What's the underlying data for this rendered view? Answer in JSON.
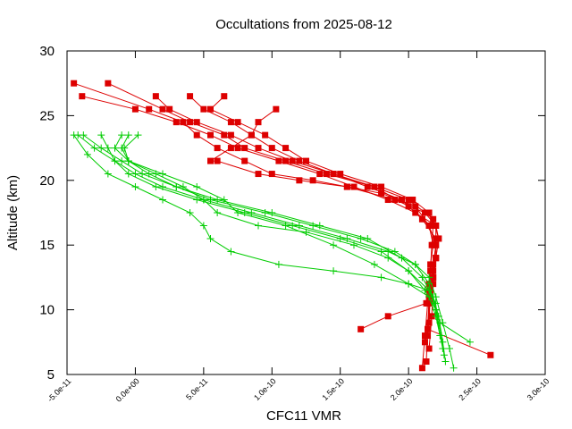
{
  "chart_data": {
    "type": "line",
    "title": "Occultations from 2025-08-12",
    "xlabel": "CFC11 VMR",
    "ylabel": "Altitude (km)",
    "xlim": [
      -5e-11,
      3e-10
    ],
    "ylim": [
      5,
      30
    ],
    "xticks": [
      -5e-11,
      0,
      5e-11,
      1e-10,
      1.5e-10,
      2e-10,
      2.5e-10,
      3e-10
    ],
    "xtick_labels": [
      "-5.0e-11",
      "0.0e+00",
      "5.0e-11",
      "1.0e-10",
      "1.5e-10",
      "2.0e-10",
      "2.5e-10",
      "3.0e-10"
    ],
    "yticks": [
      5,
      10,
      15,
      20,
      25,
      30
    ],
    "ytick_labels": [
      "5",
      "10",
      "15",
      "20",
      "25",
      "30"
    ],
    "grid": false,
    "legend": "none",
    "colors": {
      "red": "#dd0000",
      "green": "#00cc00",
      "axis": "#000000"
    },
    "series": [
      {
        "name": "r1",
        "color": "red",
        "marker": "square",
        "x": [
          -4.5e-11,
          1e-11,
          3.5e-11,
          4.5e-11,
          6e-11,
          8e-11,
          1e-10,
          1.3e-10,
          1.55e-10,
          1.8e-10,
          2.05e-10,
          2.15e-10,
          2.18e-10,
          2.16e-10,
          2.15e-10,
          2.14e-10,
          2.12e-10,
          2.1e-10
        ],
        "y": [
          27.5,
          25.5,
          24.5,
          23.5,
          22.5,
          21.5,
          20.5,
          20,
          19.5,
          19,
          18,
          16.5,
          15,
          13.5,
          12,
          10.5,
          8,
          5.5
        ]
      },
      {
        "name": "r2",
        "color": "red",
        "marker": "square",
        "x": [
          -3.9e-11,
          0.0,
          3e-11,
          5.5e-11,
          7.5e-11,
          1.05e-10,
          1.35e-10,
          1.6e-10,
          1.85e-10,
          2.05e-10,
          2.2e-10,
          2.22e-10,
          2.2e-10,
          2.18e-10,
          2.16e-10,
          2.14e-10,
          2.13e-10
        ],
        "y": [
          26.5,
          25.5,
          24.5,
          23.5,
          22.5,
          21.5,
          20.5,
          19.5,
          18.5,
          17.5,
          16.5,
          15.5,
          14,
          12.5,
          11,
          8.5,
          6
        ]
      },
      {
        "name": "r3",
        "color": "red",
        "marker": "square",
        "x": [
          -2e-11,
          2e-11,
          4e-11,
          6.5e-11,
          8e-11,
          1.1e-10,
          1.4e-10,
          1.75e-10,
          2e-10,
          2.15e-10,
          2.2e-10,
          2.18e-10,
          2.15e-10,
          2.13e-10,
          1.85e-10,
          1.65e-10
        ],
        "y": [
          27.5,
          25.5,
          24.5,
          23.5,
          22.5,
          21.5,
          20.5,
          19.5,
          18,
          16.5,
          15,
          13,
          11.5,
          10.5,
          9.5,
          8.5
        ]
      },
      {
        "name": "r4",
        "color": "red",
        "marker": "square",
        "x": [
          1.5e-11,
          2.5e-11,
          4.5e-11,
          7e-11,
          9e-11,
          1.15e-10,
          1.45e-10,
          1.7e-10,
          1.95e-10,
          2.1e-10,
          2.2e-10,
          2.2e-10,
          2.18e-10,
          2.15e-10,
          2.14e-10
        ],
        "y": [
          26.5,
          25.5,
          24.5,
          23.5,
          22.5,
          21.5,
          20.5,
          19.5,
          18.5,
          17,
          15.5,
          14,
          12.5,
          10.5,
          8
        ]
      },
      {
        "name": "r5",
        "color": "red",
        "marker": "square",
        "x": [
          4e-11,
          5e-11,
          7e-11,
          8.5e-11,
          1e-10,
          1.2e-10,
          1.45e-10,
          1.75e-10,
          2e-10,
          2.18e-10,
          2.22e-10,
          2.2e-10,
          2.18e-10,
          2.17e-10,
          2.15e-10
        ],
        "y": [
          26.5,
          25.5,
          24.5,
          23.5,
          22.5,
          21.5,
          20.5,
          19.5,
          18.5,
          17,
          15.5,
          14,
          12,
          9.5,
          7
        ]
      },
      {
        "name": "r6",
        "color": "red",
        "marker": "square",
        "x": [
          6.5e-11,
          5.5e-11,
          7.5e-11,
          9.5e-11,
          1.1e-10,
          1.25e-10,
          1.5e-10,
          1.8e-10,
          2.03e-10,
          2.15e-10,
          2.18e-10,
          2.17e-10,
          2.16e-10,
          2.15e-10,
          2.14e-10,
          2.6e-10
        ],
        "y": [
          26.5,
          25.5,
          24.5,
          23.5,
          22.5,
          21.5,
          20.5,
          19.5,
          18.5,
          17.5,
          16.5,
          15,
          13,
          11,
          8.5,
          6.5
        ]
      },
      {
        "name": "r7",
        "color": "red",
        "marker": "square",
        "x": [
          1.03e-10,
          9e-11,
          8.5e-11,
          7e-11,
          5.5e-11,
          6e-11,
          9e-11,
          1.2e-10,
          1.55e-10,
          1.9e-10,
          2.12e-10,
          2.2e-10,
          2.2e-10,
          2.18e-10,
          2.16e-10,
          2.15e-10,
          2.12e-10
        ],
        "y": [
          25.5,
          24.5,
          23.5,
          22.5,
          21.5,
          21.5,
          20.5,
          20,
          19.5,
          18.5,
          17.5,
          16.5,
          15,
          13.5,
          11.5,
          9,
          7.5
        ]
      },
      {
        "name": "g1",
        "color": "green",
        "marker": "plus",
        "x": [
          -4.2e-11,
          -3e-11,
          -1.5e-11,
          0.0,
          2e-11,
          5e-11,
          8.5e-11,
          1.2e-10,
          1.55e-10,
          1.85e-10,
          2.05e-10,
          2.15e-10,
          2.2e-10,
          2.25e-10,
          2.3e-10,
          2.33e-10
        ],
        "y": [
          23.5,
          22.5,
          21.5,
          20.5,
          19.5,
          18.5,
          17.5,
          16.5,
          15.5,
          14.5,
          13.5,
          12.5,
          11,
          9,
          7,
          5.5
        ]
      },
      {
        "name": "g2",
        "color": "green",
        "marker": "plus",
        "x": [
          -3.8e-11,
          -2.5e-11,
          -1e-11,
          5e-12,
          3e-11,
          6e-11,
          1e-10,
          1.35e-10,
          1.7e-10,
          1.95e-10,
          2.1e-10,
          2.18e-10,
          2.22e-10,
          2.25e-10,
          2.27e-10
        ],
        "y": [
          23.5,
          22.5,
          21.5,
          20.5,
          19.5,
          18.5,
          17.5,
          16.5,
          15.5,
          14,
          12.5,
          11,
          9.5,
          7.5,
          6
        ]
      },
      {
        "name": "g3",
        "color": "green",
        "marker": "plus",
        "x": [
          -2.5e-11,
          -2e-11,
          -1.5e-11,
          -5e-12,
          1.5e-11,
          4.5e-11,
          8e-11,
          1.15e-10,
          1.5e-10,
          1.8e-10,
          2e-10,
          2.12e-10,
          2.2e-10,
          2.24e-10,
          2.26e-10
        ],
        "y": [
          23.5,
          22.5,
          21.5,
          20.5,
          19.5,
          18.5,
          17.5,
          16.5,
          15.5,
          14.5,
          13,
          11.5,
          10,
          8,
          6.5
        ]
      },
      {
        "name": "g4",
        "color": "green",
        "marker": "plus",
        "x": [
          -1e-11,
          -1.5e-11,
          -5e-12,
          1e-11,
          3e-11,
          5.5e-11,
          9.5e-11,
          1.3e-10,
          1.65e-10,
          1.9e-10,
          2.05e-10,
          2.15e-10,
          2.2e-10,
          2.23e-10,
          2.45e-10
        ],
        "y": [
          23.5,
          22.5,
          21.5,
          20.5,
          19.5,
          18.5,
          17.5,
          16.5,
          15.5,
          14.5,
          13.5,
          12,
          10,
          9,
          7.5
        ]
      },
      {
        "name": "g5",
        "color": "green",
        "marker": "plus",
        "x": [
          -5e-12,
          -1e-11,
          -5e-12,
          2e-11,
          4.5e-11,
          6.5e-11,
          7.5e-11,
          1.1e-10,
          1.45e-10,
          1.75e-10,
          2e-10,
          2.15e-10,
          2.2e-10,
          2.25e-10
        ],
        "y": [
          23.5,
          22.5,
          21.5,
          20.5,
          19.5,
          18.5,
          17.5,
          16.5,
          15,
          13.5,
          12,
          11,
          9.5,
          7
        ]
      },
      {
        "name": "g6",
        "color": "green",
        "marker": "plus",
        "x": [
          2e-12,
          -8e-12,
          -5e-12,
          1.5e-11,
          3.5e-11,
          5e-11,
          6e-11,
          9e-11,
          1.25e-10,
          1.6e-10,
          1.85e-10,
          2e-10,
          2.15e-10,
          2.2e-10,
          2.23e-10
        ],
        "y": [
          23.5,
          22.5,
          21.5,
          20.5,
          19.5,
          18.5,
          17.5,
          16.5,
          16,
          15,
          14,
          13,
          11.5,
          10,
          8
        ]
      },
      {
        "name": "g7",
        "color": "green",
        "marker": "plus",
        "x": [
          -4.5e-11,
          -3.5e-11,
          -2e-11,
          0.0,
          2e-11,
          4e-11,
          5e-11,
          5.5e-11,
          7e-11,
          1.05e-10,
          1.45e-10,
          1.8e-10,
          2e-10,
          2.15e-10,
          2.2e-10
        ],
        "y": [
          23.5,
          22,
          20.5,
          19.5,
          18.5,
          17.5,
          16.5,
          15.5,
          14.5,
          13.5,
          13,
          12.5,
          12,
          11.5,
          10.5
        ]
      }
    ]
  }
}
